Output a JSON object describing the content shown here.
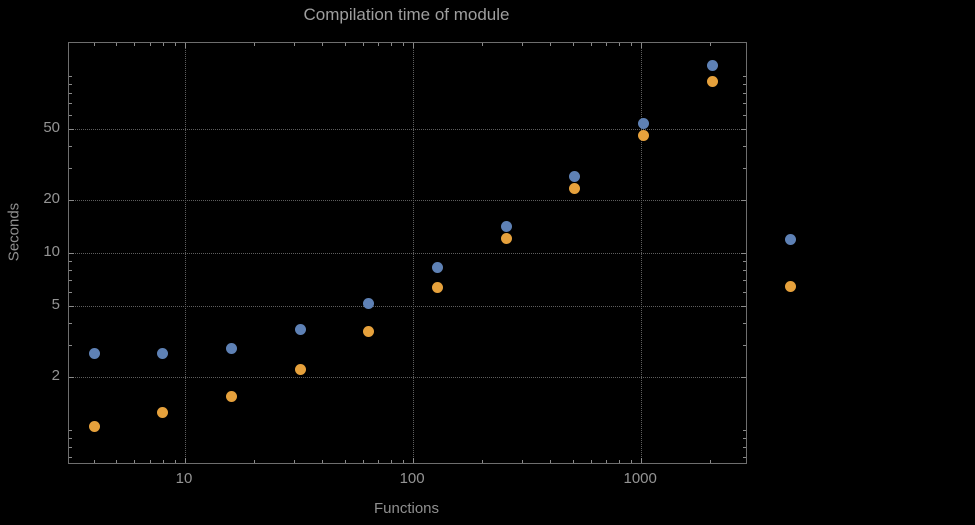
{
  "chart_data": {
    "type": "scatter",
    "title": "Compilation time of module",
    "xlabel": "Functions",
    "ylabel": "Seconds",
    "x_scale": "log",
    "y_scale": "log",
    "x_range": [
      3.1,
      2880
    ],
    "y_range": [
      0.65,
      153
    ],
    "x_ticks": [
      10,
      100,
      1000
    ],
    "y_ticks": [
      2,
      5,
      10,
      20,
      50
    ],
    "grid": true,
    "legend_position": "right",
    "x": [
      4,
      8,
      16,
      32,
      64,
      128,
      256,
      512,
      1024,
      2048
    ],
    "series": [
      {
        "name": "blue",
        "color": "#5e81b5",
        "values": [
          2.7,
          2.7,
          2.9,
          3.7,
          5.2,
          8.3,
          14,
          27,
          54,
          115
        ]
      },
      {
        "name": "orange",
        "color": "#e6a13c",
        "values": [
          1.05,
          1.25,
          1.55,
          2.2,
          3.6,
          6.4,
          12,
          23,
          46,
          93
        ]
      }
    ]
  }
}
